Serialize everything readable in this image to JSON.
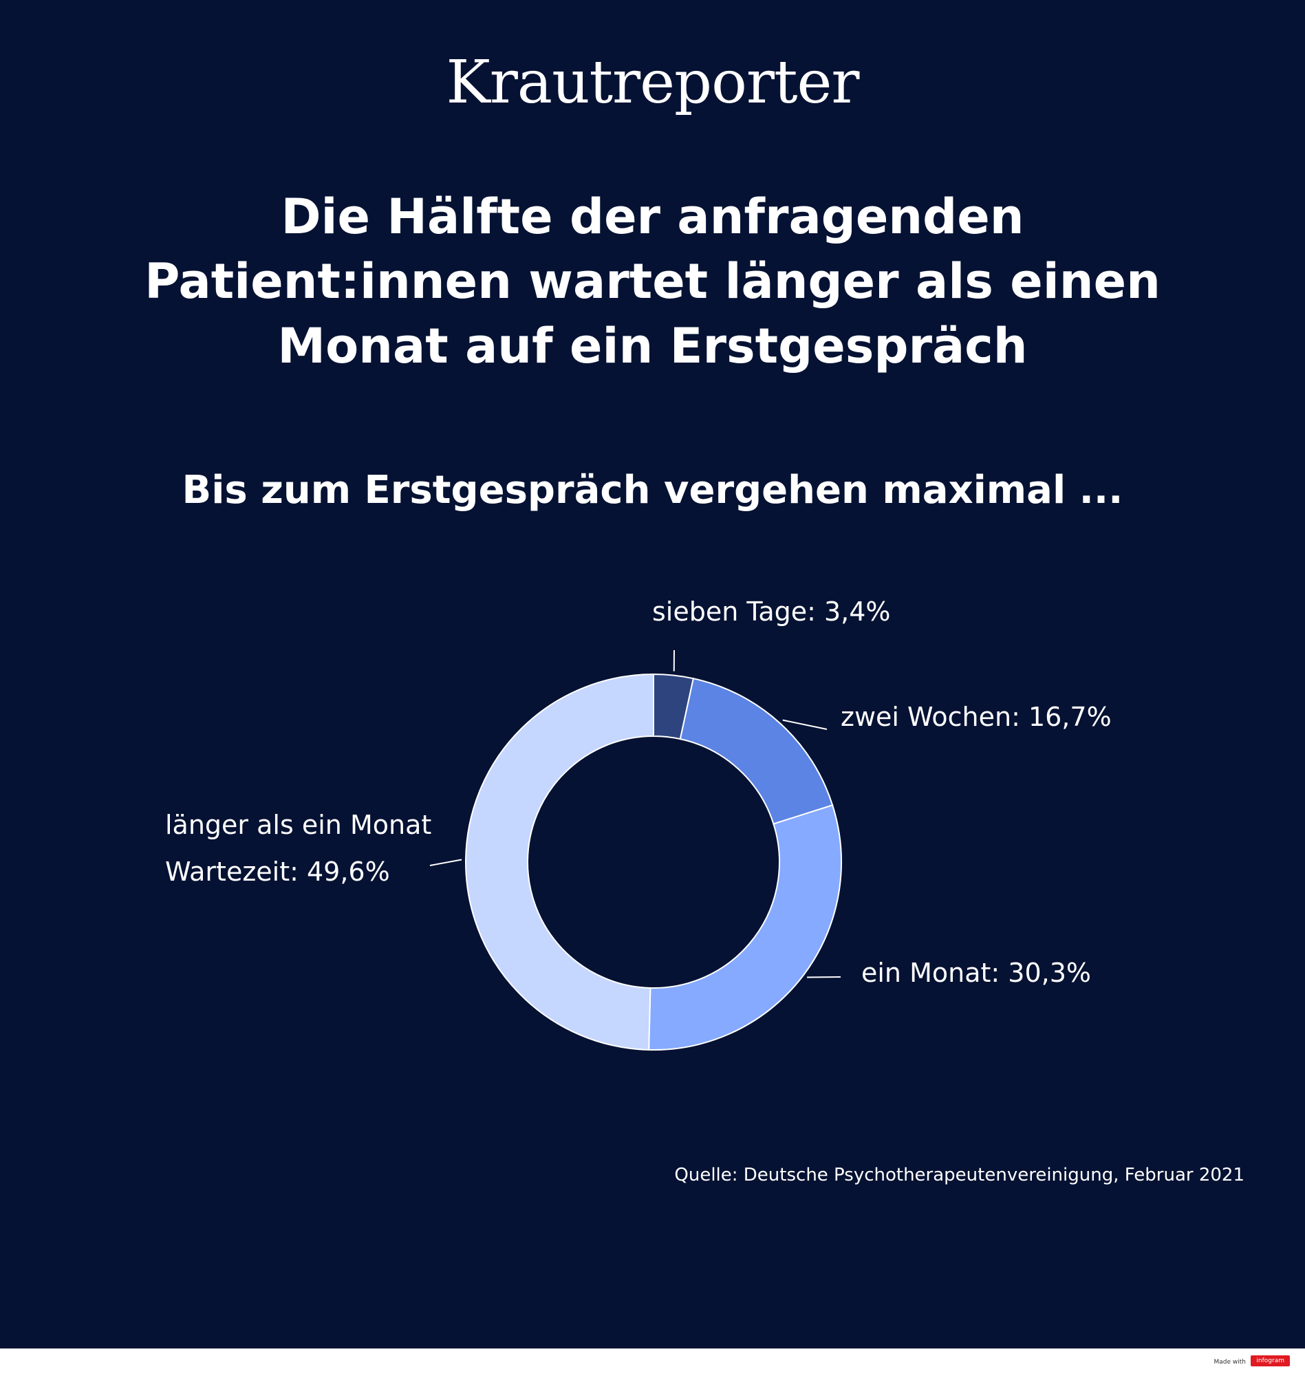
{
  "brand": "Krautreporter",
  "headline": "Die Hälfte der anfragenden Patient:innen wartet länger als einen Monat auf ein Erstgespräch",
  "subtitle": "Bis zum Erstgespräch vergehen maximal ...",
  "source": "Quelle: Deutsche Psychotherapeutenvereinigung, Februar 2021",
  "footer": {
    "made_with": "Made with",
    "badge": "infogram"
  },
  "chart_data": {
    "type": "pie",
    "variant": "donut",
    "categories": [
      "sieben Tage",
      "zwei Wochen",
      "ein Monat",
      "länger als ein Monat Wartezeit"
    ],
    "values": [
      3.4,
      16.7,
      30.3,
      49.6
    ],
    "unit": "%",
    "colors": [
      "#2e447e",
      "#5c84e4",
      "#86aaff",
      "#c5d6ff"
    ],
    "labels": [
      {
        "lines": [
          "sieben Tage: 3,4%"
        ]
      },
      {
        "lines": [
          "zwei Wochen: 16,7%"
        ]
      },
      {
        "lines": [
          "ein Monat: 30,3%"
        ]
      },
      {
        "lines": [
          "länger als ein Monat",
          "Wartezeit: 49,6%"
        ]
      }
    ],
    "legend": "none"
  }
}
